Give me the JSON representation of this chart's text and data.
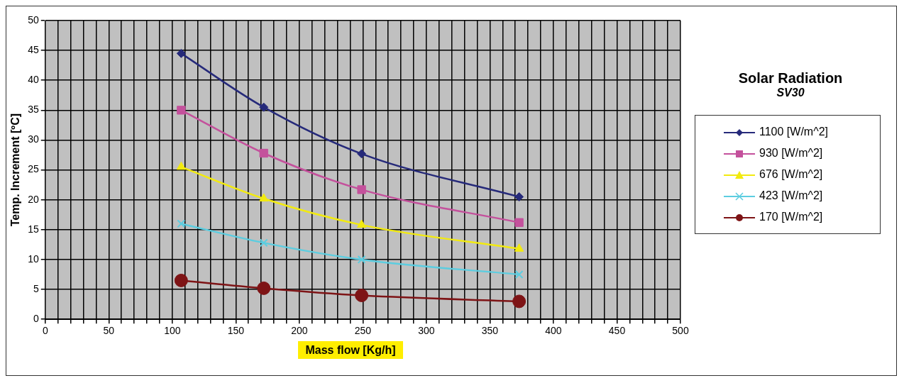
{
  "chart_data": {
    "type": "line",
    "xlabel": "Mass flow [Kg/h]",
    "ylabel": "Temp. Increment [ºC]",
    "legend_title": "Solar Radiation",
    "annotations": [
      "SV30"
    ],
    "x": [
      107,
      172,
      249,
      373
    ],
    "xlim": [
      0,
      500
    ],
    "xticks": [
      0,
      {
        "value": 10,
        "label": null
      },
      {
        "value": 20,
        "label": null
      },
      {
        "value": 30,
        "label": null
      },
      {
        "value": 40,
        "label": null
      },
      50,
      {
        "value": 60,
        "label": null
      },
      {
        "value": 70,
        "label": null
      },
      {
        "value": 80,
        "label": null
      },
      {
        "value": 90,
        "label": null
      },
      100,
      {
        "value": 110,
        "label": null
      },
      {
        "value": 120,
        "label": null
      },
      {
        "value": 130,
        "label": null
      },
      {
        "value": 140,
        "label": null
      },
      150,
      {
        "value": 160,
        "label": null
      },
      {
        "value": 170,
        "label": null
      },
      {
        "value": 180,
        "label": null
      },
      {
        "value": 190,
        "label": null
      },
      200,
      {
        "value": 210,
        "label": null
      },
      {
        "value": 220,
        "label": null
      },
      {
        "value": 230,
        "label": null
      },
      {
        "value": 240,
        "label": null
      },
      250,
      {
        "value": 260,
        "label": null
      },
      {
        "value": 270,
        "label": null
      },
      {
        "value": 280,
        "label": null
      },
      {
        "value": 290,
        "label": null
      },
      300,
      {
        "value": 310,
        "label": null
      },
      {
        "value": 320,
        "label": null
      },
      {
        "value": 330,
        "label": null
      },
      {
        "value": 340,
        "label": null
      },
      350,
      {
        "value": 360,
        "label": null
      },
      {
        "value": 370,
        "label": null
      },
      {
        "value": 380,
        "label": null
      },
      {
        "value": 390,
        "label": null
      },
      400,
      {
        "value": 410,
        "label": null
      },
      {
        "value": 420,
        "label": null
      },
      {
        "value": 430,
        "label": null
      },
      {
        "value": 440,
        "label": null
      },
      450,
      {
        "value": 460,
        "label": null
      },
      {
        "value": 470,
        "label": null
      },
      {
        "value": 480,
        "label": null
      },
      {
        "value": 490,
        "label": null
      },
      500
    ],
    "ylim": [
      0,
      50
    ],
    "yticks": [
      0,
      5,
      10,
      15,
      20,
      25,
      30,
      35,
      40,
      45,
      50
    ],
    "grid": true,
    "legend": "right",
    "series": [
      {
        "name": "1100 [W/m^2]",
        "color": "#262a7a",
        "marker": "diamond",
        "values": [
          44.5,
          35.5,
          27.7,
          20.5
        ]
      },
      {
        "name": "930 [W/m^2]",
        "color": "#c4519c",
        "marker": "square",
        "values": [
          35,
          27.8,
          21.7,
          16.2
        ]
      },
      {
        "name": "676 [W/m^2]",
        "color": "#f2ea10",
        "marker": "triangle",
        "values": [
          25.5,
          20.2,
          15.8,
          11.8
        ]
      },
      {
        "name": "423 [W/m^2]",
        "color": "#5ccde0",
        "marker": "cross",
        "values": [
          16,
          12.8,
          10,
          7.5
        ]
      },
      {
        "name": "170 [W/m^2]",
        "color": "#7e1416",
        "marker": "circle",
        "values": [
          6.5,
          5.2,
          4,
          3
        ]
      }
    ]
  }
}
